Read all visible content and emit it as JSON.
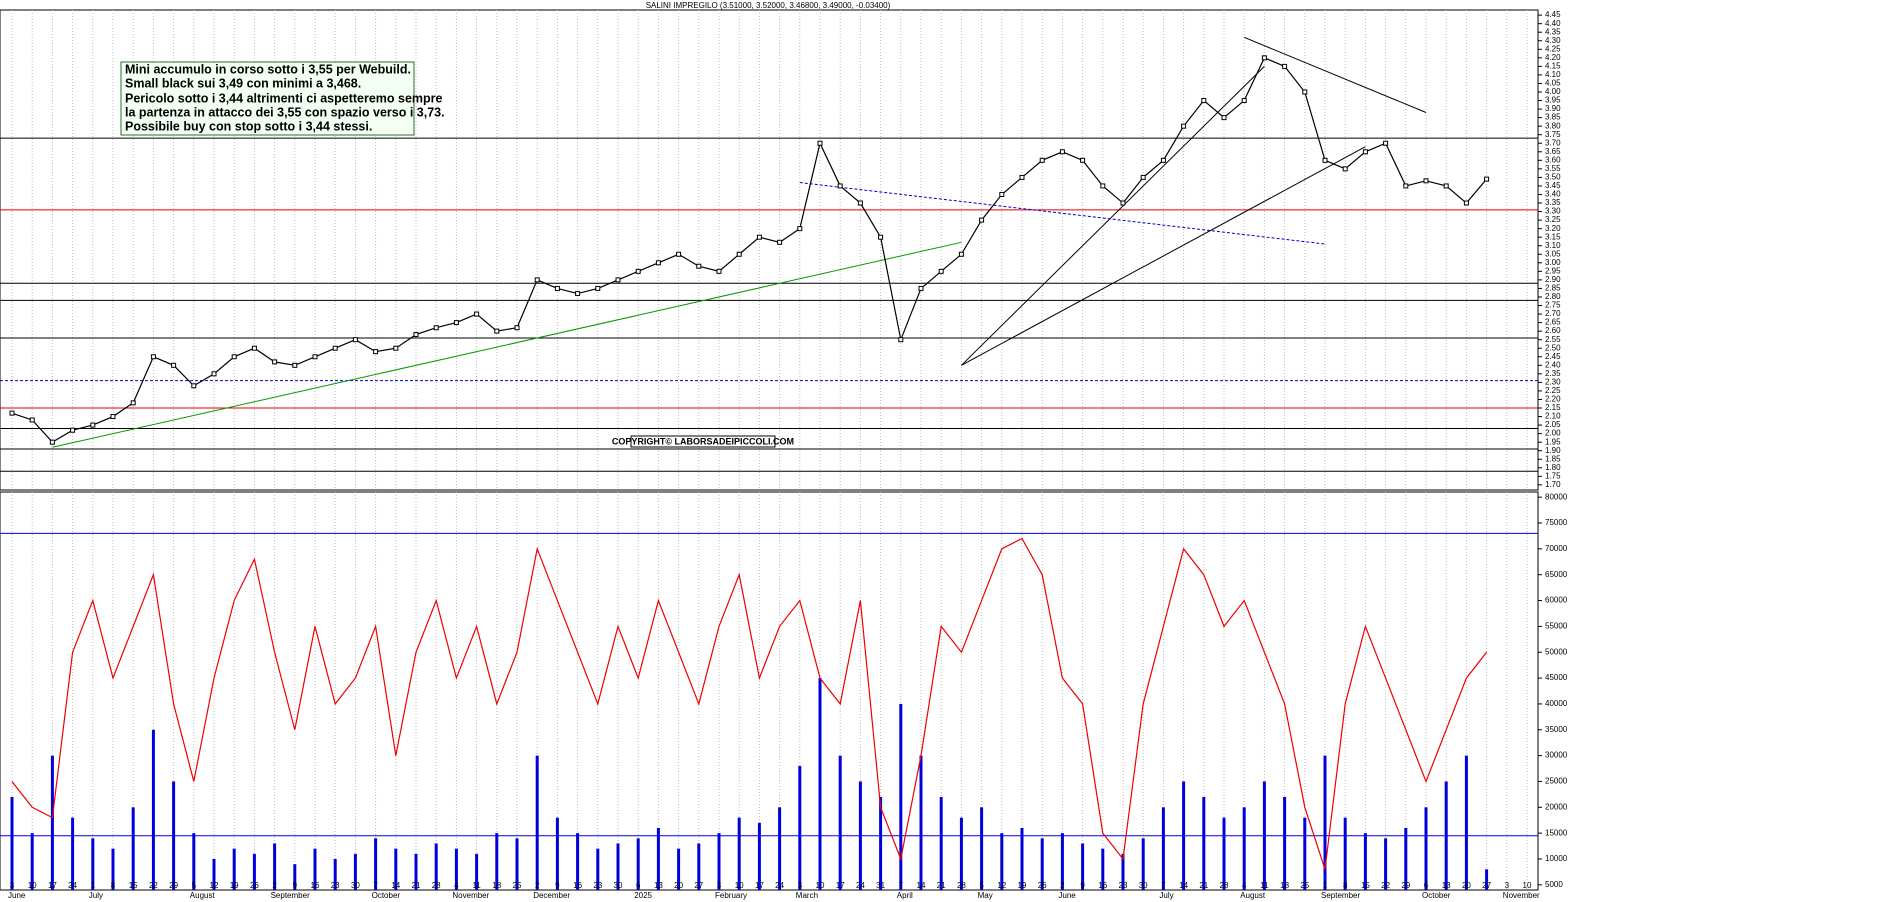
{
  "chart_data": [
    {
      "type": "line",
      "title": "SALINI IMPREGILO (3.51000, 3.52000, 3.46800, 3.49000, -0.03400)",
      "annotation": [
        "Mini accumulo in corso sotto i 3,55 per Webuild.",
        "Small black sui 3,49 con minimi a 3,468.",
        "Pericolo sotto i 3,44 altrimenti ci aspetteremo sempre",
        "la partenza in attacco dei 3,55 con spazio verso i 3,73.",
        "Possibile buy con stop sotto i 3,44 stessi."
      ],
      "copyright": "COPYRIGHT© LABORSADEIPICCOLI.COM",
      "color": "#000000",
      "values": [
        2.12,
        2.08,
        1.95,
        2.02,
        2.05,
        2.1,
        2.18,
        2.45,
        2.4,
        2.28,
        2.35,
        2.45,
        2.5,
        2.42,
        2.4,
        2.45,
        2.5,
        2.55,
        2.48,
        2.5,
        2.58,
        2.62,
        2.65,
        2.7,
        2.6,
        2.62,
        2.9,
        2.85,
        2.82,
        2.85,
        2.9,
        2.95,
        3.0,
        3.05,
        2.98,
        2.95,
        3.05,
        3.15,
        3.12,
        3.2,
        3.7,
        3.45,
        3.35,
        3.15,
        2.55,
        2.85,
        2.95,
        3.05,
        3.25,
        3.4,
        3.5,
        3.6,
        3.65,
        3.6,
        3.45,
        3.35,
        3.5,
        3.6,
        3.8,
        3.95,
        3.85,
        3.95,
        4.2,
        4.15,
        4.0,
        3.6,
        3.55,
        3.65,
        3.7,
        3.45,
        3.48,
        3.45,
        3.35,
        3.49,
        null,
        null
      ],
      "ylim": [
        1.67,
        4.48
      ],
      "yticks": [
        {
          "value": 1.7,
          "label": "1.70"
        },
        1.75,
        {
          "value": 1.8,
          "label": "1.80"
        },
        1.85,
        {
          "value": 1.9,
          "label": "1.90"
        },
        1.95,
        {
          "value": 2,
          "label": "2.00"
        },
        2.05,
        {
          "value": 2.1,
          "label": "2.10"
        },
        2.15,
        {
          "value": 2.2,
          "label": "2.20"
        },
        2.25,
        {
          "value": 2.3,
          "label": "2.30"
        },
        2.35,
        {
          "value": 2.4,
          "label": "2.40"
        },
        2.45,
        {
          "value": 2.5,
          "label": "2.50"
        },
        2.55,
        {
          "value": 2.6,
          "label": "2.60"
        },
        2.65,
        {
          "value": 2.7,
          "label": "2.70"
        },
        2.75,
        {
          "value": 2.8,
          "label": "2.80"
        },
        2.85,
        {
          "value": 2.9,
          "label": "2.90"
        },
        2.95,
        {
          "value": 3,
          "label": "3.00"
        },
        3.05,
        {
          "value": 3.1,
          "label": "3.10"
        },
        3.15,
        {
          "value": 3.2,
          "label": "3.20"
        },
        3.25,
        {
          "value": 3.3,
          "label": "3.30"
        },
        3.35,
        {
          "value": 3.4,
          "label": "3.40"
        },
        3.45,
        {
          "value": 3.5,
          "label": "3.50"
        },
        3.55,
        {
          "value": 3.6,
          "label": "3.60"
        },
        3.65,
        {
          "value": 3.7,
          "label": "3.70"
        },
        3.75,
        {
          "value": 3.8,
          "label": "3.80"
        },
        3.85,
        {
          "value": 3.9,
          "label": "3.90"
        },
        3.95,
        {
          "value": 4,
          "label": "4.00"
        },
        4.05,
        {
          "value": 4.1,
          "label": "4.10"
        },
        4.15,
        {
          "value": 4.2,
          "label": "4.20"
        },
        4.25,
        {
          "value": 4.3,
          "label": "4.30"
        },
        4.35,
        {
          "value": 4.4,
          "label": "4.40"
        },
        4.45
      ],
      "levels": [
        {
          "value": 3.73,
          "color": "#000000"
        },
        {
          "value": 3.31,
          "color": "#e00000"
        },
        {
          "value": 2.88,
          "color": "#000000"
        },
        {
          "value": 2.78,
          "color": "#000000"
        },
        {
          "value": 2.56,
          "color": "#000000"
        },
        {
          "value": 2.31,
          "color": "#0000cc",
          "dash": true
        },
        {
          "value": 2.15,
          "color": "#e00000"
        },
        {
          "value": 2.03,
          "color": "#000000"
        },
        {
          "value": 1.91,
          "color": "#000000"
        },
        {
          "value": 1.78,
          "color": "#000000"
        }
      ],
      "trendlines": [
        {
          "color": "#009900",
          "points": [
            {
              "i": 2,
              "v": 1.92
            },
            {
              "i": 47,
              "v": 3.12
            }
          ]
        },
        {
          "color": "#000000",
          "points": [
            {
              "i": 47,
              "v": 2.4
            },
            {
              "i": 67,
              "v": 3.68
            }
          ]
        },
        {
          "color": "#000000",
          "points": [
            {
              "i": 47,
              "v": 2.4
            },
            {
              "i": 62,
              "v": 4.15
            }
          ]
        },
        {
          "color": "#000000",
          "points": [
            {
              "i": 61,
              "v": 4.32
            },
            {
              "i": 70,
              "v": 3.88
            }
          ]
        },
        {
          "color": "#0000cc",
          "dash": true,
          "points": [
            {
              "i": 39,
              "v": 3.47
            },
            {
              "i": 65,
              "v": 3.11
            }
          ]
        }
      ]
    },
    {
      "type": "bar",
      "color": "#0000dd",
      "categories": [
        "3",
        "10",
        "17",
        "24",
        "1",
        "8",
        "15",
        "22",
        "29",
        "5",
        "12",
        "19",
        "26",
        "2",
        "9",
        "16",
        "23",
        "30",
        "7",
        "14",
        "21",
        "28",
        "4",
        "11",
        "18",
        "25",
        "2",
        "9",
        "16",
        "23",
        "30",
        "6",
        "13",
        "20",
        "27",
        "3",
        "10",
        "17",
        "24",
        "3",
        "10",
        "17",
        "24",
        "31",
        "7",
        "14",
        "21",
        "28",
        "5",
        "12",
        "19",
        "26",
        "2",
        "9",
        "16",
        "23",
        "30",
        "7",
        "14",
        "21",
        "28",
        "4",
        "11",
        "18",
        "25",
        "1",
        "8",
        "15",
        "22",
        "29",
        "6",
        "13",
        "20",
        "27",
        "3",
        "10"
      ],
      "month_labels": [
        "June",
        null,
        null,
        null,
        "July",
        null,
        null,
        null,
        null,
        "August",
        null,
        null,
        null,
        "September",
        null,
        null,
        null,
        null,
        "October",
        null,
        null,
        null,
        "November",
        null,
        null,
        null,
        "December",
        null,
        null,
        null,
        null,
        "2025",
        null,
        null,
        null,
        "February",
        null,
        null,
        null,
        "March",
        null,
        null,
        null,
        null,
        "April",
        null,
        null,
        null,
        "May",
        null,
        null,
        null,
        "June",
        null,
        null,
        null,
        null,
        "July",
        null,
        null,
        null,
        "August",
        null,
        null,
        null,
        "September",
        null,
        null,
        null,
        null,
        "October",
        null,
        null,
        null,
        "November",
        null
      ],
      "values": [
        22000,
        15000,
        30000,
        18000,
        14000,
        12000,
        20000,
        35000,
        25000,
        15000,
        10000,
        12000,
        11000,
        13000,
        9000,
        12000,
        10000,
        11000,
        14000,
        12000,
        11000,
        13000,
        12000,
        11000,
        15000,
        14000,
        30000,
        18000,
        15000,
        12000,
        13000,
        14000,
        16000,
        12000,
        13000,
        15000,
        18000,
        17000,
        20000,
        28000,
        45000,
        30000,
        25000,
        22000,
        40000,
        30000,
        22000,
        18000,
        20000,
        15000,
        16000,
        14000,
        15000,
        13000,
        12000,
        11000,
        14000,
        20000,
        25000,
        22000,
        18000,
        20000,
        25000,
        22000,
        18000,
        30000,
        18000,
        15000,
        14000,
        16000,
        20000,
        25000,
        30000,
        8000,
        null,
        null
      ],
      "line_color": "#ee0000",
      "line_values": [
        25000,
        20000,
        18000,
        50000,
        60000,
        45000,
        55000,
        65000,
        40000,
        25000,
        45000,
        60000,
        68000,
        50000,
        35000,
        55000,
        40000,
        45000,
        55000,
        30000,
        50000,
        60000,
        45000,
        55000,
        40000,
        50000,
        70000,
        60000,
        50000,
        40000,
        55000,
        45000,
        60000,
        50000,
        40000,
        55000,
        65000,
        45000,
        55000,
        60000,
        45000,
        40000,
        60000,
        20000,
        10000,
        30000,
        55000,
        50000,
        60000,
        70000,
        72000,
        65000,
        45000,
        40000,
        15000,
        10000,
        40000,
        55000,
        70000,
        65000,
        55000,
        60000,
        50000,
        40000,
        20000,
        8000,
        40000,
        55000,
        45000,
        35000,
        25000,
        35000,
        45000,
        50000,
        null,
        null
      ],
      "levels": [
        {
          "value": 73000,
          "color": "#0000dd"
        },
        {
          "value": 14500,
          "color": "#0000dd"
        }
      ],
      "ylim": [
        4000,
        81000
      ],
      "yticks": [
        5000,
        10000,
        15000,
        20000,
        25000,
        30000,
        35000,
        40000,
        45000,
        50000,
        55000,
        60000,
        65000,
        70000,
        75000,
        80000
      ]
    }
  ]
}
